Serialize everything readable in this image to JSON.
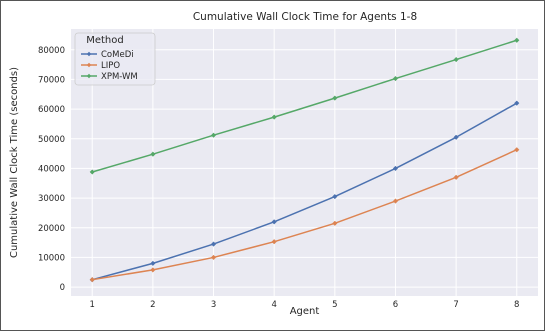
{
  "chart_data": {
    "type": "line",
    "title": "Cumulative Wall Clock Time for Agents 1-8",
    "xlabel": "Agent",
    "ylabel": "Cumulative Wall Clock Time (seconds)",
    "x": [
      1,
      2,
      3,
      4,
      5,
      6,
      7,
      8
    ],
    "xlim": [
      0.65,
      8.35
    ],
    "ylim": [
      -3000,
      87000
    ],
    "yticks": [
      0,
      10000,
      20000,
      30000,
      40000,
      50000,
      60000,
      70000,
      80000
    ],
    "grid": true,
    "background": "#eaeaf2",
    "legend": {
      "title": "Method",
      "position": "upper-left"
    },
    "series": [
      {
        "name": "CoMeDi",
        "color": "#4c72b0",
        "values": [
          2500,
          8000,
          14500,
          22000,
          30500,
          40000,
          50500,
          62000
        ]
      },
      {
        "name": "LIPO",
        "color": "#dd8452",
        "values": [
          2500,
          5800,
          10000,
          15300,
          21500,
          29000,
          37000,
          46300
        ]
      },
      {
        "name": "XPM-WM",
        "color": "#55a868",
        "values": [
          38800,
          44800,
          51200,
          57300,
          63700,
          70300,
          76700,
          83200
        ]
      }
    ]
  }
}
